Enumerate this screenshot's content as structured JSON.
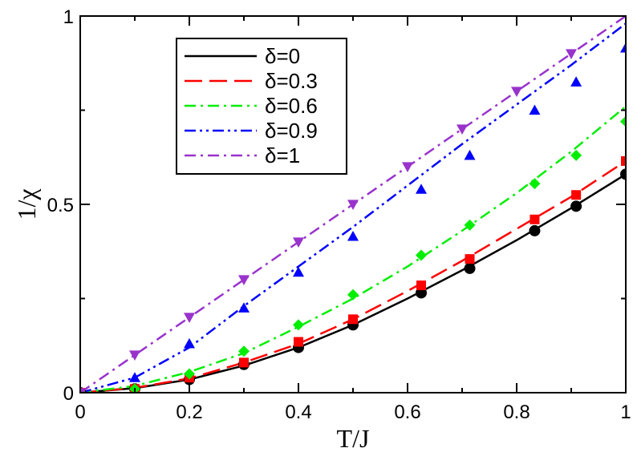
{
  "chart_data": {
    "type": "line",
    "title": "",
    "xlabel": "T/J",
    "ylabel": "1/χ",
    "xlim": [
      0,
      1
    ],
    "ylim": [
      0,
      1
    ],
    "x_ticks": [
      0,
      0.2,
      0.4,
      0.6,
      0.8,
      1
    ],
    "x_tick_labels": [
      "0",
      "0.2",
      "0.4",
      "0.6",
      "0.8",
      "1"
    ],
    "y_ticks": [
      0,
      0.5,
      1
    ],
    "y_tick_labels": [
      "0",
      "0.5",
      "1"
    ],
    "legend_position": "top-left",
    "series": [
      {
        "name": "δ=0",
        "color": "#000000",
        "dash": "solid",
        "marker": "circle",
        "line_x": [
          0,
          0.1,
          0.2,
          0.3,
          0.4,
          0.5,
          0.6,
          0.7,
          0.8,
          0.9,
          1.0
        ],
        "line_y": [
          0,
          0.012,
          0.035,
          0.072,
          0.12,
          0.18,
          0.25,
          0.325,
          0.405,
          0.49,
          0.58
        ],
        "points_x": [
          0,
          0.1,
          0.2,
          0.3,
          0.4,
          0.5,
          0.625,
          0.714,
          0.833,
          0.909,
          1.0
        ],
        "points_y": [
          0,
          0.01,
          0.035,
          0.075,
          0.12,
          0.18,
          0.265,
          0.33,
          0.43,
          0.495,
          0.58
        ]
      },
      {
        "name": "δ=0.3",
        "color": "#ff0000",
        "dash": "long-dash",
        "marker": "square",
        "line_x": [
          0,
          0.1,
          0.2,
          0.3,
          0.4,
          0.5,
          0.6,
          0.7,
          0.8,
          0.9,
          1.0
        ],
        "line_y": [
          0,
          0.013,
          0.038,
          0.08,
          0.13,
          0.195,
          0.27,
          0.35,
          0.435,
          0.52,
          0.615
        ],
        "points_x": [
          0,
          0.1,
          0.2,
          0.3,
          0.4,
          0.5,
          0.625,
          0.714,
          0.833,
          0.909,
          1.0
        ],
        "points_y": [
          0,
          0.01,
          0.04,
          0.08,
          0.135,
          0.195,
          0.285,
          0.355,
          0.46,
          0.525,
          0.615
        ]
      },
      {
        "name": "δ=0.6",
        "color": "#00ee00",
        "dash": "dash-dot",
        "marker": "diamond",
        "line_x": [
          0,
          0.1,
          0.2,
          0.3,
          0.4,
          0.5,
          0.6,
          0.7,
          0.8,
          0.9,
          1.0
        ],
        "line_y": [
          0,
          0.018,
          0.055,
          0.105,
          0.175,
          0.25,
          0.335,
          0.43,
          0.53,
          0.64,
          0.76
        ],
        "points_x": [
          0,
          0.1,
          0.2,
          0.3,
          0.4,
          0.5,
          0.625,
          0.714,
          0.833,
          0.909,
          1.0
        ],
        "points_y": [
          0,
          0.01,
          0.05,
          0.11,
          0.18,
          0.26,
          0.365,
          0.445,
          0.555,
          0.63,
          0.72
        ]
      },
      {
        "name": "δ=0.9",
        "color": "#0000ff",
        "dash": "dash-dot-dot",
        "marker": "triangle-up",
        "line_x": [
          0,
          0.1,
          0.2,
          0.3,
          0.4,
          0.5,
          0.6,
          0.7,
          0.8,
          0.9,
          1.0
        ],
        "line_y": [
          0,
          0.04,
          0.12,
          0.23,
          0.335,
          0.44,
          0.55,
          0.66,
          0.765,
          0.87,
          0.98
        ],
        "points_x": [
          0,
          0.1,
          0.2,
          0.3,
          0.4,
          0.5,
          0.625,
          0.714,
          0.833,
          0.909,
          1.0
        ],
        "points_y": [
          0,
          0.04,
          0.13,
          0.225,
          0.32,
          0.415,
          0.54,
          0.63,
          0.75,
          0.825,
          0.915
        ]
      },
      {
        "name": "δ=1",
        "color": "#9933cc",
        "dash": "dash-dot",
        "marker": "triangle-down",
        "line_x": [
          0,
          0.1,
          0.2,
          0.3,
          0.4,
          0.5,
          0.6,
          0.7,
          0.8,
          0.9,
          1.0
        ],
        "line_y": [
          0,
          0.1,
          0.2,
          0.3,
          0.4,
          0.5,
          0.6,
          0.7,
          0.8,
          0.9,
          1.0
        ],
        "points_x": [
          0,
          0.1,
          0.2,
          0.3,
          0.4,
          0.5,
          0.6,
          0.7,
          0.8,
          0.9
        ],
        "points_y": [
          0,
          0.1,
          0.2,
          0.3,
          0.4,
          0.5,
          0.6,
          0.7,
          0.8,
          0.9
        ]
      }
    ]
  }
}
